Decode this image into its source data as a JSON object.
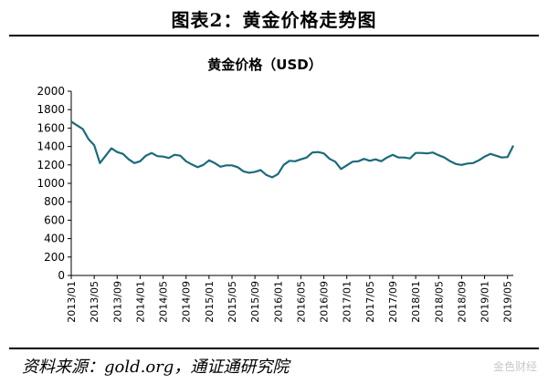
{
  "figure": {
    "title": "图表2：黄金价格走势图",
    "source": "资料来源：gold.org，通证通研究院",
    "watermark": "金色财经"
  },
  "chart_data": {
    "type": "line",
    "title": "黄金价格（USD）",
    "xlabel": "",
    "ylabel": "",
    "ylim": [
      0,
      2000
    ],
    "yticks": [
      0,
      200,
      400,
      600,
      800,
      1000,
      1200,
      1400,
      1600,
      1800,
      2000
    ],
    "xticks": [
      "2013/01",
      "2013/05",
      "2013/09",
      "2014/01",
      "2014/05",
      "2014/09",
      "2015/01",
      "2015/05",
      "2015/09",
      "2016/01",
      "2016/05",
      "2016/09",
      "2017/01",
      "2017/05",
      "2017/09",
      "2018/01",
      "2018/05",
      "2018/09",
      "2019/01",
      "2019/05"
    ],
    "grid": false,
    "legend": "none",
    "x": [
      "2013/01",
      "2013/02",
      "2013/03",
      "2013/04",
      "2013/05",
      "2013/06",
      "2013/07",
      "2013/08",
      "2013/09",
      "2013/10",
      "2013/11",
      "2013/12",
      "2014/01",
      "2014/02",
      "2014/03",
      "2014/04",
      "2014/05",
      "2014/06",
      "2014/07",
      "2014/08",
      "2014/09",
      "2014/10",
      "2014/11",
      "2014/12",
      "2015/01",
      "2015/02",
      "2015/03",
      "2015/04",
      "2015/05",
      "2015/06",
      "2015/07",
      "2015/08",
      "2015/09",
      "2015/10",
      "2015/11",
      "2015/12",
      "2016/01",
      "2016/02",
      "2016/03",
      "2016/04",
      "2016/05",
      "2016/06",
      "2016/07",
      "2016/08",
      "2016/09",
      "2016/10",
      "2016/11",
      "2016/12",
      "2017/01",
      "2017/02",
      "2017/03",
      "2017/04",
      "2017/05",
      "2017/06",
      "2017/07",
      "2017/08",
      "2017/09",
      "2017/10",
      "2017/11",
      "2017/12",
      "2018/01",
      "2018/02",
      "2018/03",
      "2018/04",
      "2018/05",
      "2018/06",
      "2018/07",
      "2018/08",
      "2018/09",
      "2018/10",
      "2018/11",
      "2018/12",
      "2019/01",
      "2019/02",
      "2019/03",
      "2019/04",
      "2019/05",
      "2019/06"
    ],
    "series": [
      {
        "name": "",
        "color": "#1a6b7a",
        "values": [
          1670,
          1630,
          1590,
          1480,
          1415,
          1220,
          1300,
          1380,
          1340,
          1320,
          1260,
          1220,
          1240,
          1300,
          1330,
          1295,
          1290,
          1275,
          1310,
          1300,
          1240,
          1205,
          1175,
          1200,
          1250,
          1220,
          1180,
          1195,
          1195,
          1175,
          1130,
          1115,
          1125,
          1145,
          1090,
          1065,
          1100,
          1200,
          1245,
          1240,
          1260,
          1280,
          1335,
          1340,
          1325,
          1265,
          1235,
          1155,
          1195,
          1235,
          1240,
          1265,
          1245,
          1260,
          1240,
          1280,
          1310,
          1280,
          1280,
          1270,
          1330,
          1330,
          1325,
          1335,
          1305,
          1280,
          1240,
          1210,
          1200,
          1215,
          1220,
          1250,
          1290,
          1320,
          1300,
          1280,
          1285,
          1410
        ]
      }
    ]
  }
}
